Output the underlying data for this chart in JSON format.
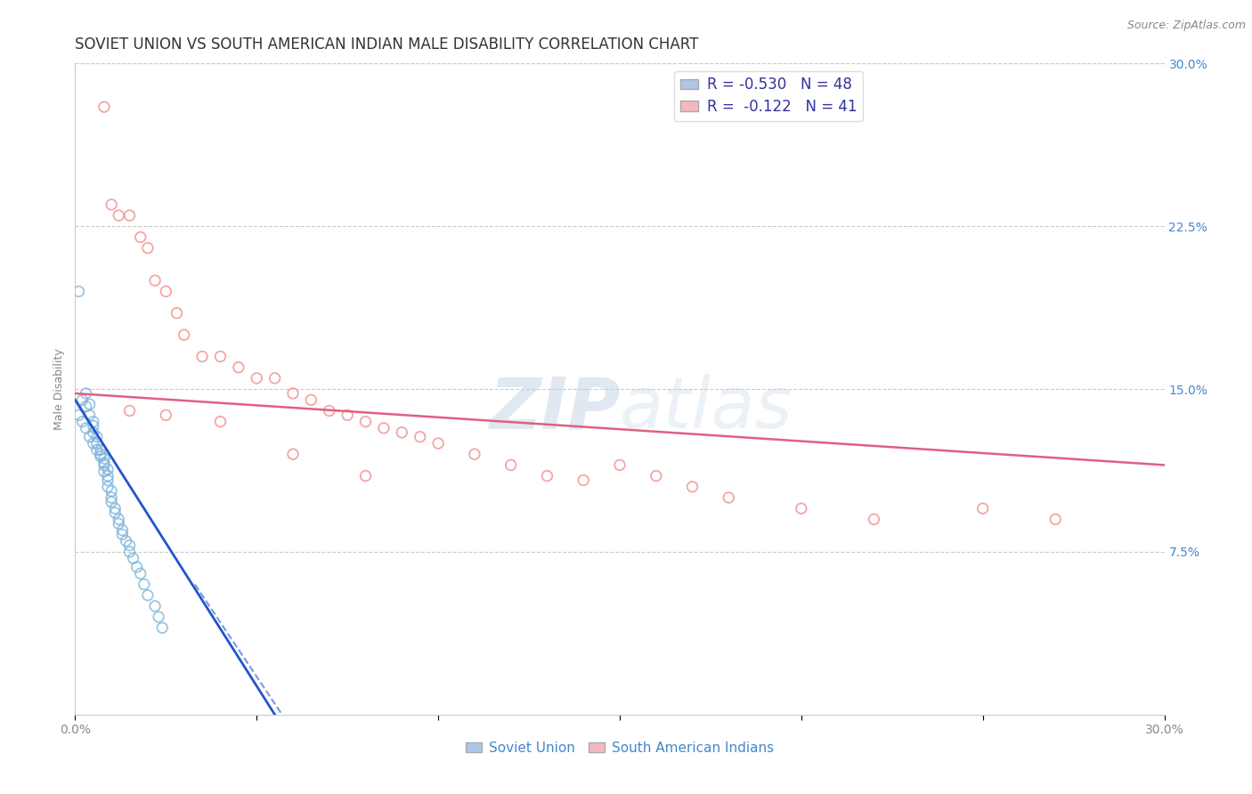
{
  "title": "SOVIET UNION VS SOUTH AMERICAN INDIAN MALE DISABILITY CORRELATION CHART",
  "source": "Source: ZipAtlas.com",
  "ylabel": "Male Disability",
  "watermark_zip": "ZIP",
  "watermark_atlas": "atlas",
  "xlim": [
    0.0,
    0.3
  ],
  "ylim": [
    0.0,
    0.3
  ],
  "ytick_vals": [
    0.075,
    0.15,
    0.225,
    0.3
  ],
  "ytick_labels": [
    "7.5%",
    "15.0%",
    "22.5%",
    "30.0%"
  ],
  "legend_entries": [
    {
      "label": "R = -0.530   N = 48",
      "color": "#aec6e8"
    },
    {
      "label": "R =  -0.122   N = 41",
      "color": "#f4b8c1"
    }
  ],
  "soviet_scatter_color": "#7ab3d9",
  "sai_scatter_color": "#f08888",
  "trendline_soviet_color": "#2255cc",
  "trendline_sai_color": "#e06080",
  "background_color": "#ffffff",
  "grid_color": "#cccccc",
  "soviet_x": [
    0.001,
    0.002,
    0.003,
    0.003,
    0.004,
    0.004,
    0.005,
    0.005,
    0.005,
    0.006,
    0.006,
    0.007,
    0.007,
    0.008,
    0.008,
    0.008,
    0.009,
    0.009,
    0.009,
    0.01,
    0.01,
    0.01,
    0.011,
    0.011,
    0.012,
    0.012,
    0.013,
    0.013,
    0.014,
    0.015,
    0.015,
    0.016,
    0.017,
    0.018,
    0.019,
    0.02,
    0.022,
    0.023,
    0.024,
    0.001,
    0.002,
    0.003,
    0.004,
    0.005,
    0.006,
    0.007,
    0.008,
    0.009
  ],
  "soviet_y": [
    0.195,
    0.145,
    0.142,
    0.148,
    0.138,
    0.143,
    0.135,
    0.133,
    0.13,
    0.128,
    0.125,
    0.122,
    0.12,
    0.118,
    0.115,
    0.112,
    0.11,
    0.108,
    0.105,
    0.103,
    0.1,
    0.098,
    0.095,
    0.093,
    0.09,
    0.088,
    0.085,
    0.083,
    0.08,
    0.078,
    0.075,
    0.072,
    0.068,
    0.065,
    0.06,
    0.055,
    0.05,
    0.045,
    0.04,
    0.138,
    0.135,
    0.132,
    0.128,
    0.125,
    0.122,
    0.119,
    0.116,
    0.113
  ],
  "sai_x": [
    0.008,
    0.01,
    0.012,
    0.015,
    0.018,
    0.02,
    0.022,
    0.025,
    0.028,
    0.03,
    0.035,
    0.04,
    0.045,
    0.05,
    0.055,
    0.06,
    0.065,
    0.07,
    0.075,
    0.08,
    0.085,
    0.09,
    0.095,
    0.1,
    0.11,
    0.12,
    0.13,
    0.14,
    0.15,
    0.16,
    0.17,
    0.18,
    0.2,
    0.22,
    0.25,
    0.27,
    0.015,
    0.025,
    0.04,
    0.06,
    0.08
  ],
  "sai_y": [
    0.28,
    0.235,
    0.23,
    0.23,
    0.22,
    0.215,
    0.2,
    0.195,
    0.185,
    0.175,
    0.165,
    0.165,
    0.16,
    0.155,
    0.155,
    0.148,
    0.145,
    0.14,
    0.138,
    0.135,
    0.132,
    0.13,
    0.128,
    0.125,
    0.12,
    0.115,
    0.11,
    0.108,
    0.115,
    0.11,
    0.105,
    0.1,
    0.095,
    0.09,
    0.095,
    0.09,
    0.14,
    0.138,
    0.135,
    0.12,
    0.11
  ],
  "soviet_trend_x": [
    0.0,
    0.055
  ],
  "soviet_trend_y": [
    0.145,
    0.0
  ],
  "sai_trend_x": [
    0.0,
    0.3
  ],
  "sai_trend_y": [
    0.148,
    0.115
  ],
  "title_fontsize": 12,
  "axis_label_fontsize": 9,
  "tick_fontsize": 10,
  "legend_fontsize": 12,
  "marker_size": 70,
  "marker_alpha": 0.45
}
